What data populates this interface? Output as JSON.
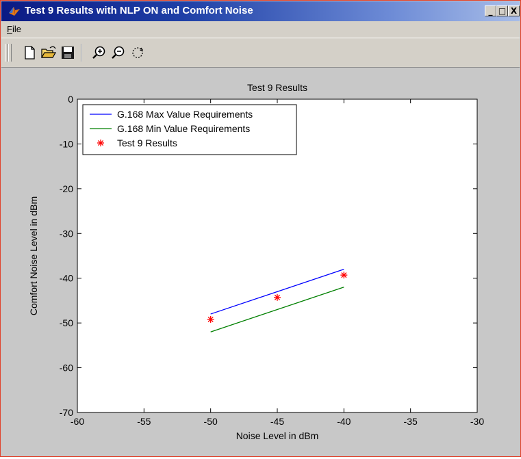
{
  "window": {
    "title": "Test 9 Results with NLP ON and Comfort Noise",
    "controls": {
      "minimize": "_",
      "maximize": "□",
      "close": "X"
    }
  },
  "menu": {
    "file_accel": "F",
    "file_rest": "ile"
  },
  "toolbar": {
    "buttons": [
      "new-file-icon",
      "open-folder-icon",
      "save-icon",
      "zoom-in-icon",
      "zoom-out-icon",
      "rotate-icon"
    ]
  },
  "colors": {
    "max_line": "#0000ff",
    "min_line": "#008000",
    "results": "#ff0000",
    "figure_bg": "#c8c8c8",
    "axes_bg": "#ffffff"
  },
  "chart_data": {
    "type": "line",
    "title": "Test 9 Results",
    "xlabel": "Noise Level in dBm",
    "ylabel": "Comfort Noise Level in dBm",
    "xlim": [
      -60,
      -30
    ],
    "ylim": [
      -70,
      0
    ],
    "xticks": [
      -60,
      -55,
      -50,
      -45,
      -40,
      -35,
      -30
    ],
    "yticks": [
      0,
      -10,
      -20,
      -30,
      -40,
      -50,
      -60,
      -70
    ],
    "grid": false,
    "legend_position": "top-left",
    "series": [
      {
        "name": "G.168 Max Value Requirements",
        "style": "line",
        "color": "#0000ff",
        "x": [
          -50,
          -40
        ],
        "y": [
          -48,
          -38
        ]
      },
      {
        "name": "G.168 Min Value Requirements",
        "style": "line",
        "color": "#008000",
        "x": [
          -50,
          -40
        ],
        "y": [
          -52,
          -42
        ]
      },
      {
        "name": "Test 9 Results",
        "style": "marker",
        "marker": "*",
        "color": "#ff0000",
        "x": [
          -50,
          -45,
          -40
        ],
        "y": [
          -49.2,
          -44.3,
          -39.3
        ]
      }
    ]
  }
}
